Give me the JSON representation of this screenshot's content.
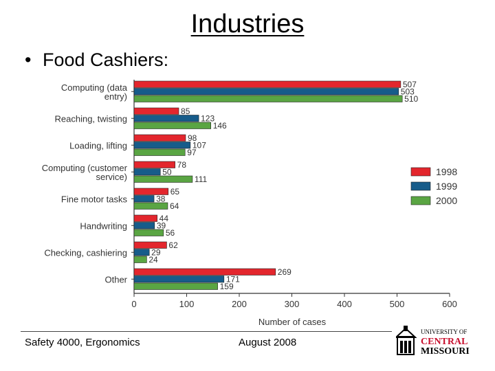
{
  "slide": {
    "title": "Industries",
    "bullet": "Food Cashiers:",
    "footer_left": "Safety 4000,  Ergonomics",
    "footer_date": "August 2008",
    "logo_top": "UNIVERSITY OF",
    "logo_mid": "CENTRAL",
    "logo_bottom": "MISSOURI"
  },
  "chart_data": {
    "type": "bar",
    "orientation": "horizontal",
    "categories": [
      [
        "Computing (data",
        "entry)"
      ],
      [
        "Reaching, twisting"
      ],
      [
        "Loading, lifting"
      ],
      [
        "Computing (customer",
        "service)"
      ],
      [
        "Fine motor tasks"
      ],
      [
        "Handwriting"
      ],
      [
        "Checking, cashiering"
      ],
      [
        "Other"
      ]
    ],
    "series": [
      {
        "name": "1998",
        "color": "#e3262d",
        "values": [
          507,
          85,
          98,
          78,
          65,
          44,
          62,
          269
        ]
      },
      {
        "name": "1999",
        "color": "#175c8a",
        "values": [
          503,
          123,
          107,
          50,
          38,
          39,
          29,
          171
        ]
      },
      {
        "name": "2000",
        "color": "#5aa543",
        "values": [
          510,
          146,
          97,
          111,
          64,
          56,
          24,
          159
        ]
      }
    ],
    "xlabel": "Number of cases",
    "xlim": [
      0,
      600
    ],
    "xticks": [
      "0",
      "100",
      "200",
      "300",
      "400",
      "500",
      "600"
    ],
    "legend_position": "right",
    "grid": false
  }
}
